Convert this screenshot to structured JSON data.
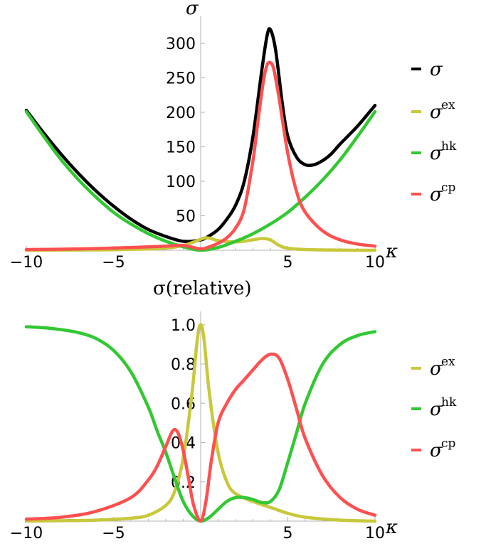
{
  "chart_data": [
    {
      "type": "line",
      "title": "",
      "xlabel": "κ",
      "ylabel": "σ",
      "xlim": [
        -10,
        10
      ],
      "ylim": [
        0,
        335
      ],
      "x_ticks": [
        "−10",
        "−5",
        "5",
        "10"
      ],
      "y_ticks": [
        "50",
        "100",
        "150",
        "200",
        "250",
        "300"
      ],
      "legend_position": "right",
      "series": [
        {
          "name": "σ",
          "color": "#000000",
          "x": [
            -10,
            -9,
            -8,
            -7,
            -6,
            -5,
            -4,
            -3,
            -2,
            -1,
            0,
            0.5,
            1,
            1.5,
            2,
            2.5,
            3,
            3.5,
            3.8,
            4,
            4.3,
            4.7,
            5,
            5.5,
            6,
            6.5,
            7,
            7.5,
            8,
            9,
            10
          ],
          "y": [
            203,
            170,
            139,
            111,
            86,
            64,
            45,
            30,
            20,
            13,
            15,
            21,
            30,
            45,
            65,
            100,
            165,
            260,
            310,
            320,
            290,
            210,
            165,
            135,
            124,
            124,
            130,
            140,
            154,
            180,
            210
          ]
        },
        {
          "name": "ex",
          "sup": "ex",
          "color": "#C8C83C",
          "x": [
            -10,
            -8,
            -6,
            -4,
            -2,
            -1,
            -0.5,
            0,
            0.3,
            0.6,
            1,
            2,
            3,
            3.5,
            4,
            4.5,
            5,
            6,
            8,
            10
          ],
          "y": [
            0,
            0.2,
            0.5,
            1.2,
            3,
            7,
            11,
            16,
            18,
            17,
            14,
            12,
            15,
            17,
            15,
            7,
            3,
            1,
            0.2,
            0
          ]
        },
        {
          "name": "hk",
          "sup": "hk",
          "color": "#32C832",
          "x": [
            -10,
            -9,
            -8,
            -7,
            -6,
            -5,
            -4,
            -3,
            -2,
            -1,
            0,
            1,
            2,
            3,
            4,
            5,
            6,
            7,
            8,
            9,
            10
          ],
          "y": [
            201,
            165,
            131,
            102,
            77,
            55,
            38,
            24,
            13,
            5,
            0,
            4,
            13,
            24,
            38,
            55,
            77,
            102,
            131,
            165,
            201
          ]
        },
        {
          "name": "cp",
          "sup": "cp",
          "color": "#FF5050",
          "x": [
            -10,
            -8,
            -6,
            -4,
            -2,
            -1,
            0,
            0.5,
            1,
            1.5,
            2,
            2.5,
            3,
            3.3,
            3.6,
            3.8,
            4,
            4.2,
            4.5,
            5,
            5.5,
            6,
            7,
            8,
            9,
            10
          ],
          "y": [
            1,
            1.5,
            2.5,
            4,
            6,
            7,
            2,
            5,
            10,
            18,
            32,
            60,
            130,
            190,
            245,
            268,
            272,
            262,
            220,
            140,
            85,
            55,
            28,
            15,
            9,
            6
          ]
        }
      ]
    },
    {
      "type": "line",
      "title": "σ(relative)",
      "xlabel": "κ",
      "ylabel": "",
      "xlim": [
        -10,
        10
      ],
      "ylim": [
        0,
        1.05
      ],
      "x_ticks": [
        "−10",
        "−5",
        "5",
        "10"
      ],
      "y_ticks": [
        "0.2",
        "0.4",
        "0.6",
        "0.8",
        "1.0"
      ],
      "legend_position": "right",
      "series": [
        {
          "name": "ex",
          "sup": "ex",
          "color": "#C8C83C",
          "x": [
            -10,
            -8,
            -6,
            -4,
            -3,
            -2,
            -1.5,
            -1,
            -0.5,
            -0.2,
            0,
            0.2,
            0.5,
            1,
            1.5,
            2,
            3,
            4,
            5,
            6,
            8,
            10
          ],
          "y": [
            0,
            0.002,
            0.005,
            0.015,
            0.03,
            0.08,
            0.15,
            0.32,
            0.65,
            0.92,
            1.0,
            0.92,
            0.65,
            0.35,
            0.2,
            0.14,
            0.1,
            0.07,
            0.04,
            0.02,
            0.005,
            0
          ]
        },
        {
          "name": "hk",
          "sup": "hk",
          "color": "#32C832",
          "x": [
            -10,
            -9,
            -8,
            -7,
            -6,
            -5,
            -4,
            -3,
            -2.5,
            -2,
            -1.5,
            -1,
            -0.5,
            0,
            0.5,
            1,
            1.5,
            2,
            2.5,
            3,
            3.5,
            4,
            4.5,
            5,
            5.5,
            6,
            7,
            8,
            9,
            10
          ],
          "y": [
            0.99,
            0.985,
            0.975,
            0.96,
            0.93,
            0.87,
            0.76,
            0.58,
            0.46,
            0.35,
            0.22,
            0.1,
            0.03,
            0,
            0.02,
            0.06,
            0.1,
            0.12,
            0.12,
            0.11,
            0.095,
            0.1,
            0.16,
            0.3,
            0.45,
            0.6,
            0.8,
            0.9,
            0.945,
            0.965
          ]
        },
        {
          "name": "cp",
          "sup": "cp",
          "color": "#FF5050",
          "x": [
            -10,
            -8,
            -6,
            -4,
            -3,
            -2.5,
            -2,
            -1.6,
            -1.3,
            -1,
            -0.7,
            -0.4,
            0,
            0.3,
            0.6,
            1,
            1.5,
            2,
            2.5,
            3,
            3.5,
            4,
            4.5,
            5,
            5.5,
            6,
            7,
            8,
            9,
            10
          ],
          "y": [
            0.01,
            0.02,
            0.05,
            0.12,
            0.21,
            0.28,
            0.38,
            0.46,
            0.45,
            0.36,
            0.22,
            0.08,
            0,
            0.1,
            0.3,
            0.5,
            0.6,
            0.67,
            0.72,
            0.77,
            0.82,
            0.85,
            0.83,
            0.72,
            0.57,
            0.42,
            0.23,
            0.12,
            0.06,
            0.03
          ]
        }
      ]
    }
  ]
}
